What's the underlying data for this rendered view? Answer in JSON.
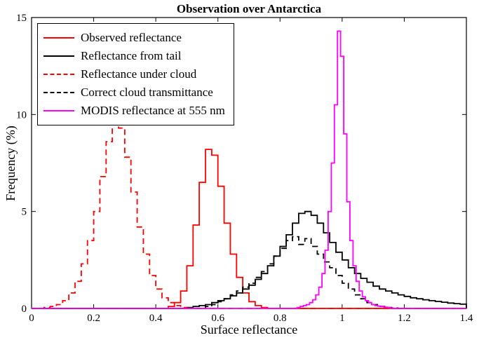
{
  "title": "Observation over Antarctica",
  "x_label": "Surface reflectance",
  "y_label": "Frequency (%)",
  "chart_data": {
    "type": "line",
    "subtype": "step-histogram",
    "title": "Observation over Antarctica",
    "xlabel": "Surface reflectance",
    "ylabel": "Frequency (%)",
    "xlim": [
      0,
      1.4
    ],
    "ylim": [
      0,
      15
    ],
    "grid": false,
    "legend_position": "top-left",
    "x_ticks": [
      {
        "v": 0,
        "label": "0"
      },
      {
        "v": 0.2,
        "label": "0.2"
      },
      {
        "v": 0.4,
        "label": "0.4"
      },
      {
        "v": 0.6,
        "label": "0.6"
      },
      {
        "v": 0.8,
        "label": "0.8"
      },
      {
        "v": 1,
        "label": "1"
      },
      {
        "v": 1.2,
        "label": "1.2"
      },
      {
        "v": 1.4,
        "label": "1.4"
      }
    ],
    "y_ticks": [
      {
        "v": 0,
        "label": "0"
      },
      {
        "v": 5,
        "label": "5"
      },
      {
        "v": 10,
        "label": "10"
      },
      {
        "v": 15,
        "label": "15"
      }
    ],
    "series": [
      {
        "name": "Observed reflectance",
        "color": "#ff0000",
        "dash": "solid",
        "bin_width": 0.02,
        "x": [
          0.45,
          0.47,
          0.49,
          0.51,
          0.53,
          0.55,
          0.57,
          0.59,
          0.61,
          0.63,
          0.65,
          0.67,
          0.69,
          0.71,
          0.73,
          0.75
        ],
        "y": [
          0.1,
          0.3,
          0.9,
          2.2,
          4.3,
          6.5,
          8.2,
          7.9,
          6.3,
          4.4,
          2.8,
          1.6,
          0.8,
          0.35,
          0.15,
          0.05
        ]
      },
      {
        "name": "Reflectance from tail",
        "color": "#000000",
        "dash": "solid",
        "bin_width": 0.02,
        "x": [
          0.51,
          0.53,
          0.55,
          0.57,
          0.59,
          0.61,
          0.63,
          0.65,
          0.67,
          0.69,
          0.71,
          0.73,
          0.75,
          0.77,
          0.79,
          0.81,
          0.83,
          0.85,
          0.87,
          0.89,
          0.91,
          0.93,
          0.95,
          0.97,
          0.99,
          1.01,
          1.03,
          1.05,
          1.07,
          1.09,
          1.11,
          1.13,
          1.15,
          1.17,
          1.19,
          1.21,
          1.23,
          1.25,
          1.27,
          1.29,
          1.31,
          1.33,
          1.35,
          1.37,
          1.39
        ],
        "y": [
          0.05,
          0.1,
          0.15,
          0.2,
          0.3,
          0.4,
          0.5,
          0.65,
          0.8,
          1.0,
          1.2,
          1.5,
          1.8,
          2.2,
          2.7,
          3.2,
          3.8,
          4.4,
          4.9,
          5.0,
          4.8,
          4.4,
          3.9,
          3.4,
          2.9,
          2.5,
          2.1,
          1.8,
          1.55,
          1.35,
          1.15,
          1.0,
          0.9,
          0.8,
          0.7,
          0.62,
          0.55,
          0.5,
          0.45,
          0.4,
          0.36,
          0.32,
          0.28,
          0.25,
          0.22
        ]
      },
      {
        "name": "Reflectance under cloud",
        "color": "#ff0000",
        "dash": "dashed",
        "bin_width": 0.02,
        "x": [
          0.05,
          0.07,
          0.09,
          0.11,
          0.13,
          0.15,
          0.17,
          0.19,
          0.21,
          0.23,
          0.25,
          0.27,
          0.29,
          0.31,
          0.33,
          0.35,
          0.37,
          0.39,
          0.41,
          0.43,
          0.45,
          0.47,
          0.49
        ],
        "y": [
          0.05,
          0.1,
          0.2,
          0.4,
          0.8,
          1.4,
          2.3,
          3.5,
          5.0,
          6.8,
          8.6,
          9.5,
          9.3,
          7.8,
          6.0,
          4.2,
          2.8,
          1.7,
          1.0,
          0.55,
          0.3,
          0.15,
          0.05
        ]
      },
      {
        "name": "Correct cloud transmittance",
        "color": "#000000",
        "dash": "dashed",
        "bin_width": 0.02,
        "x": [
          0.57,
          0.59,
          0.61,
          0.63,
          0.65,
          0.67,
          0.69,
          0.71,
          0.73,
          0.75,
          0.77,
          0.79,
          0.81,
          0.83,
          0.85,
          0.87,
          0.89,
          0.91,
          0.93,
          0.95,
          0.97,
          0.99,
          1.01,
          1.03,
          1.05,
          1.07,
          1.09,
          1.11,
          1.13,
          1.15,
          1.17
        ],
        "y": [
          0.1,
          0.2,
          0.35,
          0.5,
          0.7,
          0.9,
          1.1,
          1.3,
          1.6,
          1.9,
          2.3,
          2.7,
          3.1,
          3.5,
          3.7,
          3.3,
          3.6,
          3.2,
          2.8,
          2.4,
          2.1,
          1.7,
          1.3,
          1.0,
          0.7,
          0.5,
          0.3,
          0.2,
          0.1,
          0.05,
          0.02
        ]
      },
      {
        "name": "MODIS reflectance at 555 nm",
        "color": "#ff00ff",
        "dash": "solid",
        "bin_width": 0.01,
        "x": [
          0.86,
          0.87,
          0.88,
          0.89,
          0.9,
          0.91,
          0.92,
          0.93,
          0.94,
          0.95,
          0.96,
          0.97,
          0.98,
          0.99,
          1.0,
          1.01,
          1.02,
          1.03,
          1.04,
          1.05,
          1.06,
          1.07,
          1.08,
          1.09,
          1.1,
          1.11,
          1.12,
          1.13,
          1.14,
          1.15,
          1.16
        ],
        "y": [
          0.05,
          0.1,
          0.15,
          0.2,
          0.3,
          0.45,
          0.7,
          1.1,
          1.8,
          3.0,
          5.0,
          7.5,
          10.5,
          14.3,
          13.0,
          9.0,
          5.5,
          3.5,
          2.2,
          1.4,
          0.9,
          0.6,
          0.4,
          0.3,
          0.2,
          0.15,
          0.12,
          0.1,
          0.07,
          0.05,
          0.02
        ]
      }
    ]
  }
}
